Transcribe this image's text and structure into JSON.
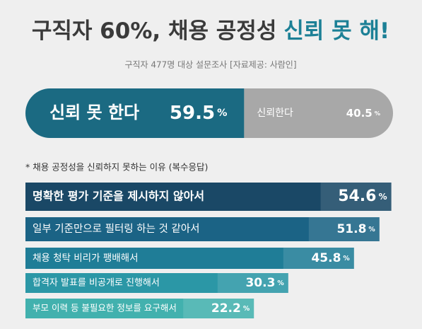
{
  "chart_data": [
    {
      "type": "split",
      "title": "구직자 60%, 채용 공정성",
      "title_highlight": "신뢰 못 해!",
      "subtitle": "구직자 477명 대상 설문조사 [자료제공: 사람인]",
      "categories": [
        "신뢰 못 한다",
        "신뢰한다"
      ],
      "values": [
        59.5,
        40.5
      ],
      "unit": "%",
      "colors": [
        "#1b6a82",
        "#a8a8a8"
      ]
    },
    {
      "type": "hbar",
      "title": "* 채용 공정성을 신뢰하지 못하는 이유 (복수응답)",
      "categories": [
        "명확한 평가 기준을 제시하지 않아서",
        "일부 기준만으로 필터링 하는 것 같아서",
        "채용 청탁 비리가 팽배해서",
        "합격자 발표를 비공개로 진행해서",
        "부모 이력 등 불필요한 정보를 요구해서"
      ],
      "values": [
        54.6,
        51.8,
        45.8,
        30.3,
        22.2
      ],
      "unit": "%",
      "colors": [
        "#1a4866",
        "#1b6385",
        "#1f7d97",
        "#2b97a6",
        "#42b1ae"
      ]
    }
  ]
}
